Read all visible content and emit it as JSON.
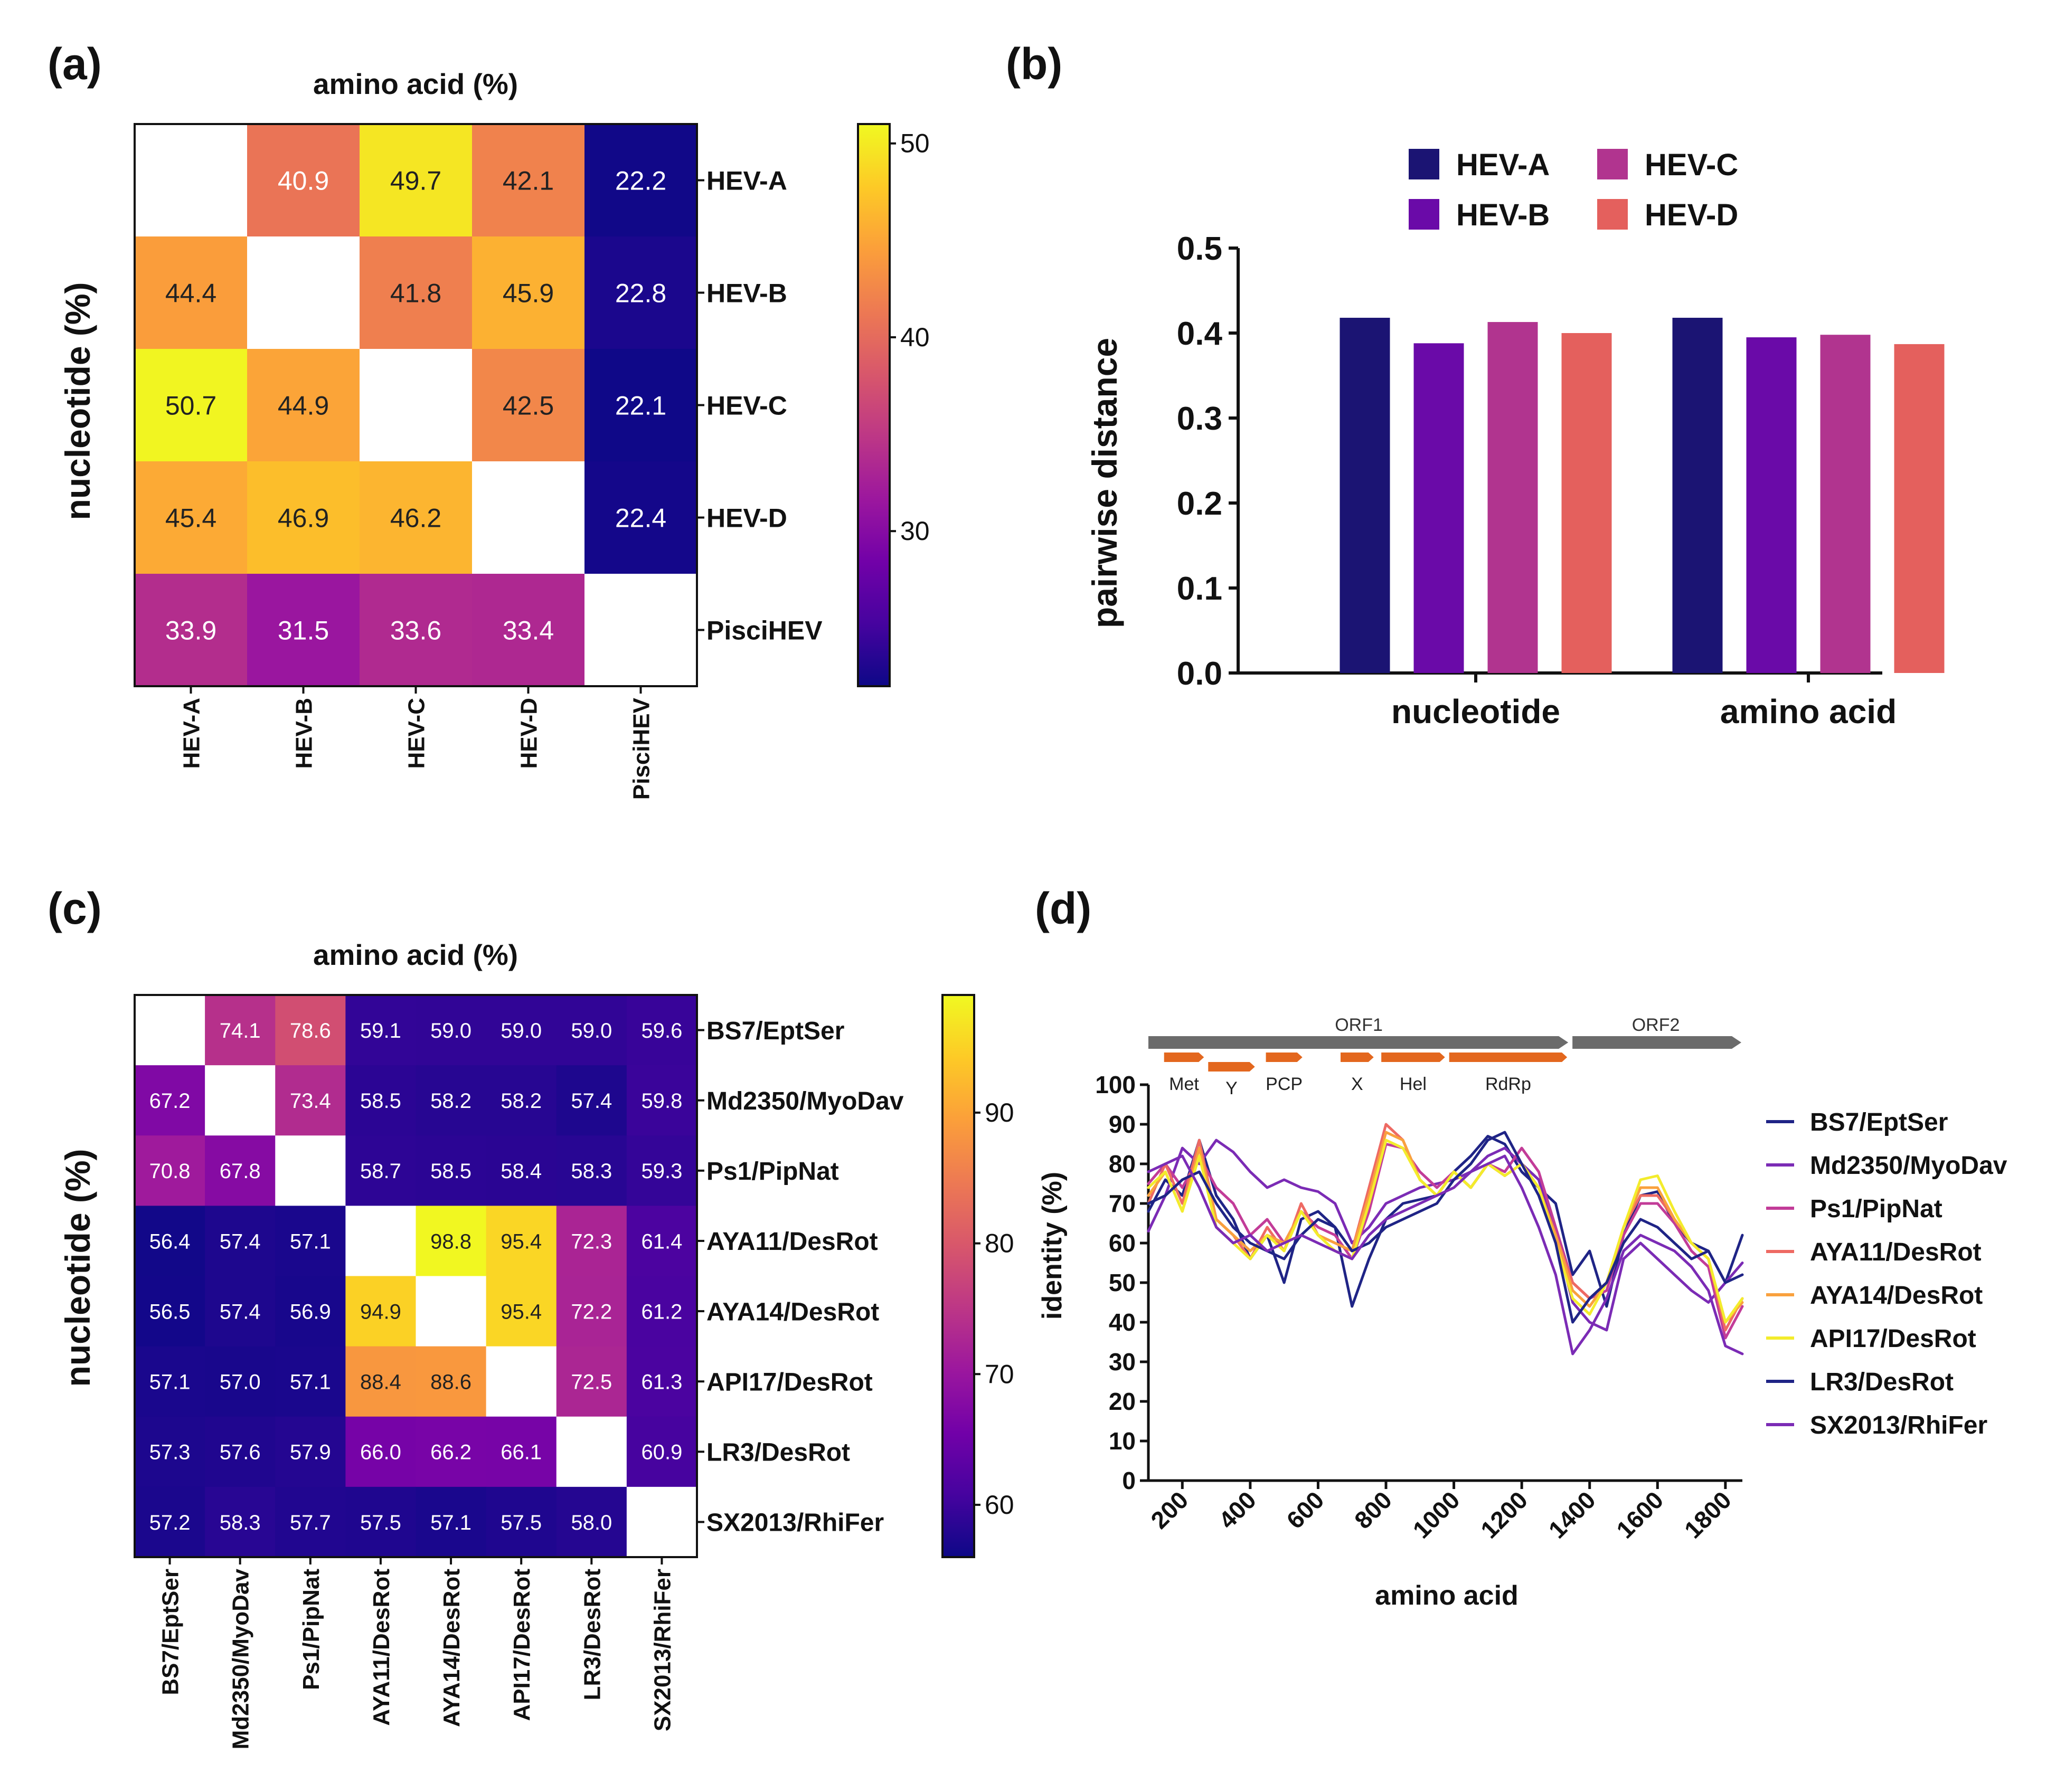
{
  "panels": {
    "a": "(a)",
    "b": "(b)",
    "c": "(c)",
    "d": "(d)"
  },
  "colors": {
    "plasma": [
      "#0d0887",
      "#46039f",
      "#7201a8",
      "#9c179e",
      "#bd3786",
      "#d8576b",
      "#ed7953",
      "#fb9f3a",
      "#fdca26",
      "#f0f921"
    ],
    "bar": [
      "#1b1473",
      "#6a0aa8",
      "#b1348f",
      "#e4605d"
    ],
    "lines": [
      "#1f2486",
      "#7b2bb5",
      "#c23c98",
      "#ee6a63",
      "#f9a13e",
      "#f3ec2c",
      "#1f2486",
      "#7b2bb5"
    ],
    "orf": "#6b6b6b",
    "domain": "#e3671e"
  },
  "chart_data": [
    {
      "type": "heatmap",
      "panel": "a",
      "title": "amino acid (%)",
      "ylabel": "nucleotide (%)",
      "row_labels": [
        "HEV-A",
        "HEV-B",
        "HEV-C",
        "HEV-D",
        "PisciHEV"
      ],
      "col_labels": [
        "HEV-A",
        "HEV-B",
        "HEV-C",
        "HEV-D",
        "PisciHEV"
      ],
      "values": [
        [
          null,
          40.9,
          49.7,
          42.1,
          22.2
        ],
        [
          44.4,
          null,
          41.8,
          45.9,
          22.8
        ],
        [
          50.7,
          44.9,
          null,
          42.5,
          22.1
        ],
        [
          45.4,
          46.9,
          46.2,
          null,
          22.4
        ],
        [
          33.9,
          31.5,
          33.6,
          33.4,
          null
        ]
      ],
      "colorbar": {
        "range": [
          22,
          51
        ],
        "ticks": [
          30,
          40,
          50
        ]
      }
    },
    {
      "type": "bar",
      "panel": "b",
      "categories": [
        "nucleotide",
        "amino acid"
      ],
      "series": [
        {
          "name": "HEV-A",
          "values": [
            0.418,
            0.418
          ]
        },
        {
          "name": "HEV-B",
          "values": [
            0.388,
            0.395
          ]
        },
        {
          "name": "HEV-C",
          "values": [
            0.413,
            0.398
          ]
        },
        {
          "name": "HEV-D",
          "values": [
            0.4,
            0.387
          ]
        }
      ],
      "ylabel": "pairwise distance",
      "ylim": [
        0,
        0.5
      ],
      "yticks": [
        "0.0",
        "0.1",
        "0.2",
        "0.3",
        "0.4",
        "0.5"
      ],
      "legend": "top"
    },
    {
      "type": "heatmap",
      "panel": "c",
      "title": "amino acid (%)",
      "ylabel": "nucleotide (%)",
      "row_labels": [
        "BS7/EptSer",
        "Md2350/MyoDav",
        "Ps1/PipNat",
        "AYA11/DesRot",
        "AYA14/DesRot",
        "API17/DesRot",
        "LR3/DesRot",
        "SX2013/RhiFer"
      ],
      "col_labels": [
        "BS7/EptSer",
        "Md2350/MyoDav",
        "Ps1/PipNat",
        "AYA11/DesRot",
        "AYA14/DesRot",
        "API17/DesRot",
        "LR3/DesRot",
        "SX2013/RhiFer"
      ],
      "values": [
        [
          null,
          74.1,
          78.6,
          59.1,
          59.0,
          59.0,
          59.0,
          59.6
        ],
        [
          67.2,
          null,
          73.4,
          58.5,
          58.2,
          58.2,
          57.4,
          59.8
        ],
        [
          70.8,
          67.8,
          null,
          58.7,
          58.5,
          58.4,
          58.3,
          59.3
        ],
        [
          56.4,
          57.4,
          57.1,
          null,
          98.8,
          95.4,
          72.3,
          61.4
        ],
        [
          56.5,
          57.4,
          56.9,
          94.9,
          null,
          95.4,
          72.2,
          61.2
        ],
        [
          57.1,
          57.0,
          57.1,
          88.4,
          88.6,
          null,
          72.5,
          61.3
        ],
        [
          57.3,
          57.6,
          57.9,
          66.0,
          66.2,
          66.1,
          null,
          60.9
        ],
        [
          57.2,
          58.3,
          57.7,
          57.5,
          57.1,
          57.5,
          58.0,
          null
        ]
      ],
      "colorbar": {
        "range": [
          56,
          99
        ],
        "ticks": [
          60,
          70,
          80,
          90
        ]
      }
    },
    {
      "type": "line",
      "panel": "d",
      "xlabel": "amino acid",
      "ylabel": "identity (%)",
      "xlim": [
        100,
        1850
      ],
      "ylim": [
        0,
        100
      ],
      "xticks": [
        200,
        400,
        600,
        800,
        1000,
        1200,
        1400,
        1600,
        1800
      ],
      "yticks": [
        0,
        10,
        20,
        30,
        40,
        50,
        60,
        70,
        80,
        90,
        100
      ],
      "x": [
        100,
        150,
        200,
        250,
        300,
        350,
        400,
        450,
        500,
        550,
        600,
        650,
        700,
        750,
        800,
        850,
        900,
        950,
        1000,
        1050,
        1100,
        1150,
        1200,
        1250,
        1300,
        1350,
        1400,
        1450,
        1500,
        1550,
        1600,
        1650,
        1700,
        1750,
        1800,
        1850
      ],
      "series": [
        {
          "name": "BS7/EptSer",
          "values": [
            68,
            76,
            72,
            86,
            72,
            66,
            56,
            62,
            50,
            66,
            68,
            64,
            44,
            56,
            66,
            70,
            71,
            72,
            78,
            82,
            87,
            85,
            78,
            74,
            70,
            52,
            58,
            44,
            62,
            72,
            73,
            65,
            60,
            58,
            50,
            62
          ]
        },
        {
          "name": "Md2350/MyoDav",
          "values": [
            63,
            72,
            84,
            80,
            86,
            83,
            78,
            74,
            76,
            74,
            73,
            70,
            60,
            64,
            70,
            72,
            74,
            75,
            76,
            78,
            82,
            84,
            80,
            76,
            62,
            45,
            40,
            38,
            56,
            60,
            56,
            52,
            48,
            45,
            50,
            55
          ]
        },
        {
          "name": "Ps1/PipNat",
          "values": [
            75,
            80,
            74,
            82,
            74,
            70,
            62,
            66,
            60,
            68,
            64,
            62,
            56,
            68,
            85,
            84,
            78,
            74,
            78,
            74,
            80,
            78,
            84,
            78,
            64,
            50,
            46,
            48,
            62,
            70,
            70,
            65,
            58,
            54,
            36,
            44
          ]
        },
        {
          "name": "AYA11/DesRot",
          "values": [
            70,
            80,
            70,
            86,
            66,
            62,
            56,
            64,
            58,
            70,
            62,
            60,
            58,
            74,
            90,
            86,
            76,
            72,
            78,
            74,
            80,
            77,
            80,
            74,
            62,
            50,
            46,
            50,
            64,
            72,
            72,
            66,
            60,
            56,
            38,
            46
          ]
        },
        {
          "name": "AYA14/DesRot",
          "values": [
            72,
            78,
            68,
            84,
            66,
            62,
            58,
            62,
            60,
            68,
            62,
            60,
            58,
            72,
            88,
            86,
            76,
            72,
            78,
            74,
            80,
            77,
            80,
            74,
            62,
            48,
            44,
            50,
            64,
            74,
            74,
            66,
            60,
            56,
            40,
            45
          ]
        },
        {
          "name": "API17/DesRot",
          "values": [
            74,
            78,
            68,
            82,
            64,
            60,
            56,
            62,
            58,
            68,
            62,
            58,
            56,
            70,
            86,
            84,
            76,
            72,
            78,
            74,
            80,
            77,
            80,
            74,
            60,
            46,
            42,
            50,
            64,
            76,
            77,
            68,
            60,
            56,
            40,
            46
          ]
        },
        {
          "name": "LR3/DesRot",
          "values": [
            70,
            72,
            76,
            78,
            70,
            64,
            60,
            58,
            56,
            62,
            66,
            64,
            58,
            60,
            64,
            66,
            68,
            70,
            76,
            80,
            86,
            88,
            80,
            72,
            60,
            40,
            46,
            50,
            60,
            66,
            64,
            60,
            56,
            58,
            50,
            52
          ]
        },
        {
          "name": "SX2013/RhiFer",
          "values": [
            78,
            80,
            82,
            74,
            64,
            60,
            62,
            58,
            60,
            62,
            60,
            58,
            56,
            62,
            66,
            68,
            70,
            72,
            74,
            78,
            80,
            82,
            74,
            64,
            52,
            32,
            38,
            46,
            58,
            62,
            60,
            58,
            54,
            48,
            34,
            32
          ]
        }
      ],
      "genome": {
        "orfs": [
          {
            "label": "ORF1",
            "start": 100,
            "end": 1340
          },
          {
            "label": "ORF2",
            "start": 1340,
            "end": 1850
          }
        ],
        "domains": [
          {
            "label": "Met",
            "start": 140,
            "end": 270,
            "row": 0
          },
          {
            "label": "Y",
            "start": 270,
            "end": 420,
            "row": 1
          },
          {
            "label": "PCP",
            "start": 440,
            "end": 560,
            "row": 0
          },
          {
            "label": "X",
            "start": 660,
            "end": 770,
            "row": 0
          },
          {
            "label": "Hel",
            "start": 780,
            "end": 980,
            "row": 0
          },
          {
            "label": "RdRp",
            "start": 980,
            "end": 1340,
            "row": 0
          }
        ]
      },
      "legend": "right"
    }
  ]
}
